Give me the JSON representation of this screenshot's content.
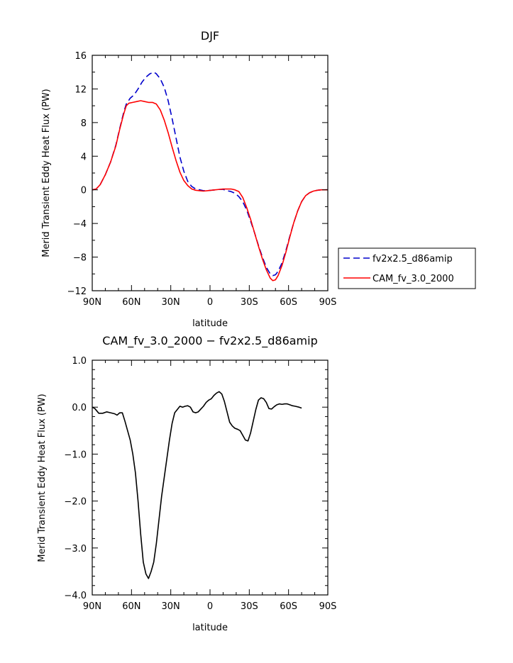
{
  "chart_data": [
    {
      "type": "line",
      "title": "DJF",
      "xlabel": "latitude",
      "ylabel": "Merid Transient Eddy Heat Flux (PW)",
      "xlim": [
        90,
        -90
      ],
      "ylim": [
        -12,
        16
      ],
      "x_ticks": [
        {
          "value": 90,
          "label": "90N"
        },
        {
          "value": 60,
          "label": "60N"
        },
        {
          "value": 30,
          "label": "30N"
        },
        {
          "value": 0,
          "label": "0"
        },
        {
          "value": -30,
          "label": "30S"
        },
        {
          "value": -60,
          "label": "60S"
        },
        {
          "value": -90,
          "label": "90S"
        }
      ],
      "y_ticks": [
        {
          "value": -12,
          "label": "−12"
        },
        {
          "value": -8,
          "label": "−8"
        },
        {
          "value": -4,
          "label": "−4"
        },
        {
          "value": 0,
          "label": "0"
        },
        {
          "value": 4,
          "label": "4"
        },
        {
          "value": 8,
          "label": "8"
        },
        {
          "value": 12,
          "label": "12"
        },
        {
          "value": 16,
          "label": "16"
        }
      ],
      "legend_position": "right",
      "series": [
        {
          "name": "fv2x2.5_d86amip",
          "color": "#0000cc",
          "dash": "dashed",
          "points": [
            [
              90,
              0
            ],
            [
              87,
              0.1
            ],
            [
              84,
              0.6
            ],
            [
              80,
              1.8
            ],
            [
              76,
              3.3
            ],
            [
              72,
              5.3
            ],
            [
              69,
              7.3
            ],
            [
              66,
              9.2
            ],
            [
              64,
              10.2
            ],
            [
              61,
              10.9
            ],
            [
              58,
              11.3
            ],
            [
              55,
              12.0
            ],
            [
              52,
              12.8
            ],
            [
              49,
              13.4
            ],
            [
              46,
              13.8
            ],
            [
              43,
              14.0
            ],
            [
              41,
              13.8
            ],
            [
              38,
              13.2
            ],
            [
              35,
              12.2
            ],
            [
              32,
              10.6
            ],
            [
              29,
              8.5
            ],
            [
              26,
              6.2
            ],
            [
              23,
              3.9
            ],
            [
              20,
              2.2
            ],
            [
              17,
              1.0
            ],
            [
              14,
              0.4
            ],
            [
              11,
              0.1
            ],
            [
              8,
              0
            ],
            [
              5,
              -0.1
            ],
            [
              2,
              -0.1
            ],
            [
              -1,
              -0.05
            ],
            [
              -4,
              0
            ],
            [
              -7,
              0.05
            ],
            [
              -10,
              0.05
            ],
            [
              -13,
              -0.1
            ],
            [
              -16,
              -0.2
            ],
            [
              -19,
              -0.4
            ],
            [
              -22,
              -0.8
            ],
            [
              -25,
              -1.4
            ],
            [
              -28,
              -2.4
            ],
            [
              -31,
              -3.7
            ],
            [
              -34,
              -5.1
            ],
            [
              -37,
              -6.6
            ],
            [
              -40,
              -8.0
            ],
            [
              -43,
              -9.2
            ],
            [
              -46,
              -10.0
            ],
            [
              -48,
              -10.2
            ],
            [
              -50,
              -10.1
            ],
            [
              -52,
              -9.7
            ],
            [
              -55,
              -8.7
            ],
            [
              -58,
              -7.2
            ],
            [
              -61,
              -5.5
            ],
            [
              -64,
              -3.9
            ],
            [
              -67,
              -2.5
            ],
            [
              -70,
              -1.4
            ],
            [
              -73,
              -0.7
            ],
            [
              -76,
              -0.35
            ],
            [
              -79,
              -0.15
            ],
            [
              -82,
              -0.05
            ],
            [
              -85,
              0
            ],
            [
              -90,
              0
            ]
          ]
        },
        {
          "name": "CAM_fv_3.0_2000",
          "color": "#ff0000",
          "dash": "solid",
          "points": [
            [
              90,
              0
            ],
            [
              87,
              0.1
            ],
            [
              84,
              0.6
            ],
            [
              80,
              1.8
            ],
            [
              76,
              3.3
            ],
            [
              72,
              5.2
            ],
            [
              69,
              7.2
            ],
            [
              66,
              9.0
            ],
            [
              64,
              10.0
            ],
            [
              62,
              10.3
            ],
            [
              59,
              10.4
            ],
            [
              56,
              10.5
            ],
            [
              53,
              10.6
            ],
            [
              50,
              10.5
            ],
            [
              47,
              10.4
            ],
            [
              44,
              10.4
            ],
            [
              41,
              10.2
            ],
            [
              38,
              9.5
            ],
            [
              35,
              8.3
            ],
            [
              32,
              6.8
            ],
            [
              29,
              5.1
            ],
            [
              26,
              3.5
            ],
            [
              23,
              2.1
            ],
            [
              20,
              1.1
            ],
            [
              17,
              0.5
            ],
            [
              14,
              0.1
            ],
            [
              11,
              -0.05
            ],
            [
              8,
              -0.1
            ],
            [
              5,
              -0.15
            ],
            [
              2,
              -0.1
            ],
            [
              -1,
              -0.05
            ],
            [
              -4,
              0
            ],
            [
              -7,
              0.05
            ],
            [
              -10,
              0.1
            ],
            [
              -13,
              0.1
            ],
            [
              -16,
              0.1
            ],
            [
              -19,
              0
            ],
            [
              -22,
              -0.2
            ],
            [
              -25,
              -0.9
            ],
            [
              -28,
              -2.1
            ],
            [
              -31,
              -3.5
            ],
            [
              -34,
              -5.1
            ],
            [
              -37,
              -6.7
            ],
            [
              -40,
              -8.2
            ],
            [
              -43,
              -9.5
            ],
            [
              -46,
              -10.5
            ],
            [
              -48,
              -10.8
            ],
            [
              -50,
              -10.7
            ],
            [
              -52,
              -10.2
            ],
            [
              -55,
              -9.0
            ],
            [
              -58,
              -7.4
            ],
            [
              -61,
              -5.6
            ],
            [
              -64,
              -3.9
            ],
            [
              -67,
              -2.5
            ],
            [
              -70,
              -1.4
            ],
            [
              -73,
              -0.7
            ],
            [
              -76,
              -0.35
            ],
            [
              -79,
              -0.15
            ],
            [
              -82,
              -0.05
            ],
            [
              -85,
              0
            ],
            [
              -90,
              0
            ]
          ]
        }
      ]
    },
    {
      "type": "line",
      "title": "CAM_fv_3.0_2000 − fv2x2.5_d86amip",
      "xlabel": "latitude",
      "ylabel": "Merid Transient Eddy Heat Flux (PW)",
      "xlim": [
        90,
        -90
      ],
      "ylim": [
        -4.0,
        1.0
      ],
      "x_ticks": [
        {
          "value": 90,
          "label": "90N"
        },
        {
          "value": 60,
          "label": "60N"
        },
        {
          "value": 30,
          "label": "30N"
        },
        {
          "value": 0,
          "label": "0"
        },
        {
          "value": -30,
          "label": "30S"
        },
        {
          "value": -60,
          "label": "60S"
        },
        {
          "value": -90,
          "label": "90S"
        }
      ],
      "y_ticks": [
        {
          "value": -4.0,
          "label": "−4.0"
        },
        {
          "value": -3.0,
          "label": "−3.0"
        },
        {
          "value": -2.0,
          "label": "−2.0"
        },
        {
          "value": -1.0,
          "label": "−1.0"
        },
        {
          "value": 0.0,
          "label": "0.0"
        },
        {
          "value": 1.0,
          "label": "1.0"
        }
      ],
      "series": [
        {
          "color": "#000000",
          "dash": "solid",
          "points": [
            [
              90,
              0
            ],
            [
              88,
              -0.03
            ],
            [
              85,
              -0.13
            ],
            [
              82,
              -0.13
            ],
            [
              79,
              -0.1
            ],
            [
              76,
              -0.12
            ],
            [
              73,
              -0.14
            ],
            [
              71,
              -0.17
            ],
            [
              69,
              -0.12
            ],
            [
              67,
              -0.12
            ],
            [
              65,
              -0.3
            ],
            [
              63,
              -0.5
            ],
            [
              61,
              -0.7
            ],
            [
              59,
              -1.0
            ],
            [
              57,
              -1.4
            ],
            [
              55,
              -2.0
            ],
            [
              53,
              -2.7
            ],
            [
              51,
              -3.3
            ],
            [
              49,
              -3.55
            ],
            [
              47,
              -3.65
            ],
            [
              45,
              -3.5
            ],
            [
              43,
              -3.3
            ],
            [
              41,
              -2.9
            ],
            [
              39,
              -2.4
            ],
            [
              37,
              -1.9
            ],
            [
              35,
              -1.5
            ],
            [
              33,
              -1.1
            ],
            [
              31,
              -0.7
            ],
            [
              29,
              -0.35
            ],
            [
              27,
              -0.12
            ],
            [
              25,
              -0.05
            ],
            [
              23,
              0.02
            ],
            [
              21,
              0.0
            ],
            [
              19,
              0.02
            ],
            [
              17,
              0.03
            ],
            [
              15,
              0.0
            ],
            [
              13,
              -0.1
            ],
            [
              11,
              -0.12
            ],
            [
              9,
              -0.1
            ],
            [
              7,
              -0.04
            ],
            [
              5,
              0.02
            ],
            [
              3,
              0.1
            ],
            [
              1,
              0.15
            ],
            [
              -1,
              0.18
            ],
            [
              -3,
              0.25
            ],
            [
              -5,
              0.3
            ],
            [
              -7,
              0.33
            ],
            [
              -9,
              0.28
            ],
            [
              -11,
              0.12
            ],
            [
              -13,
              -0.1
            ],
            [
              -15,
              -0.32
            ],
            [
              -17,
              -0.4
            ],
            [
              -19,
              -0.45
            ],
            [
              -21,
              -0.47
            ],
            [
              -23,
              -0.5
            ],
            [
              -25,
              -0.6
            ],
            [
              -27,
              -0.7
            ],
            [
              -29,
              -0.72
            ],
            [
              -31,
              -0.55
            ],
            [
              -33,
              -0.3
            ],
            [
              -35,
              -0.05
            ],
            [
              -37,
              0.15
            ],
            [
              -39,
              0.2
            ],
            [
              -41,
              0.18
            ],
            [
              -43,
              0.1
            ],
            [
              -45,
              -0.03
            ],
            [
              -47,
              -0.04
            ],
            [
              -49,
              0.01
            ],
            [
              -51,
              0.05
            ],
            [
              -53,
              0.07
            ],
            [
              -55,
              0.06
            ],
            [
              -57,
              0.07
            ],
            [
              -59,
              0.07
            ],
            [
              -61,
              0.05
            ],
            [
              -63,
              0.03
            ],
            [
              -65,
              0.02
            ],
            [
              -68,
              0.0
            ],
            [
              -70,
              -0.02
            ]
          ]
        }
      ]
    }
  ]
}
